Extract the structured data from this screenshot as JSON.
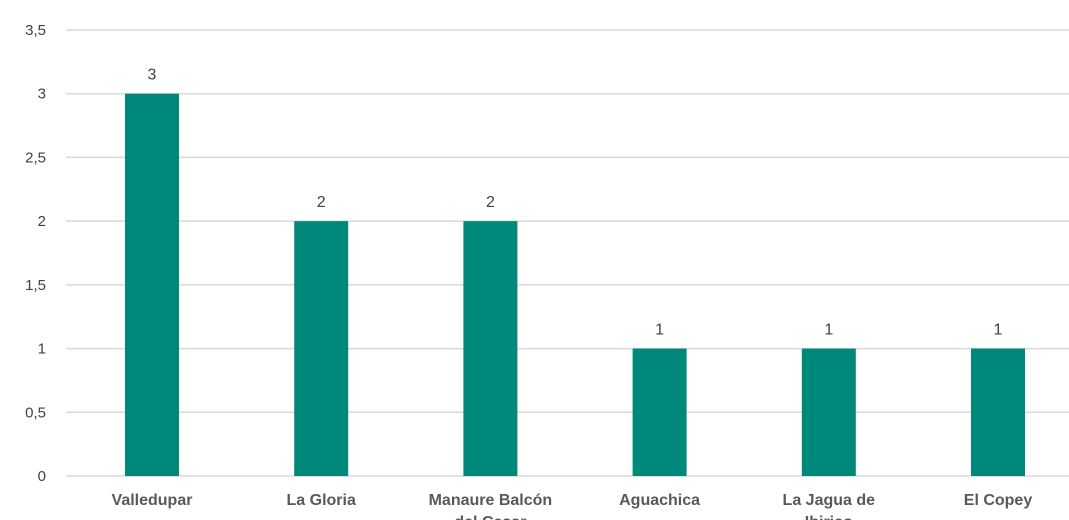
{
  "chart_data": {
    "type": "bar",
    "title": "",
    "xlabel": "",
    "ylabel": "",
    "categories": [
      "Valledupar",
      "La Gloria",
      "Manaure Balcón del Cesar",
      "Aguachica",
      "La Jagua de Ibirico",
      "El Copey"
    ],
    "values": [
      3,
      2,
      2,
      1,
      1,
      1
    ],
    "data_labels": [
      "3",
      "2",
      "2",
      "1",
      "1",
      "1"
    ],
    "ylim": [
      0,
      3.5
    ],
    "yticks": [
      0,
      0.5,
      1,
      1.5,
      2,
      2.5,
      3,
      3.5
    ],
    "ytick_labels": [
      "0",
      "0,5",
      "1",
      "1,5",
      "2",
      "2,5",
      "3",
      "3,5"
    ],
    "grid": true,
    "legend": "none",
    "bar_color": "#00897b"
  }
}
